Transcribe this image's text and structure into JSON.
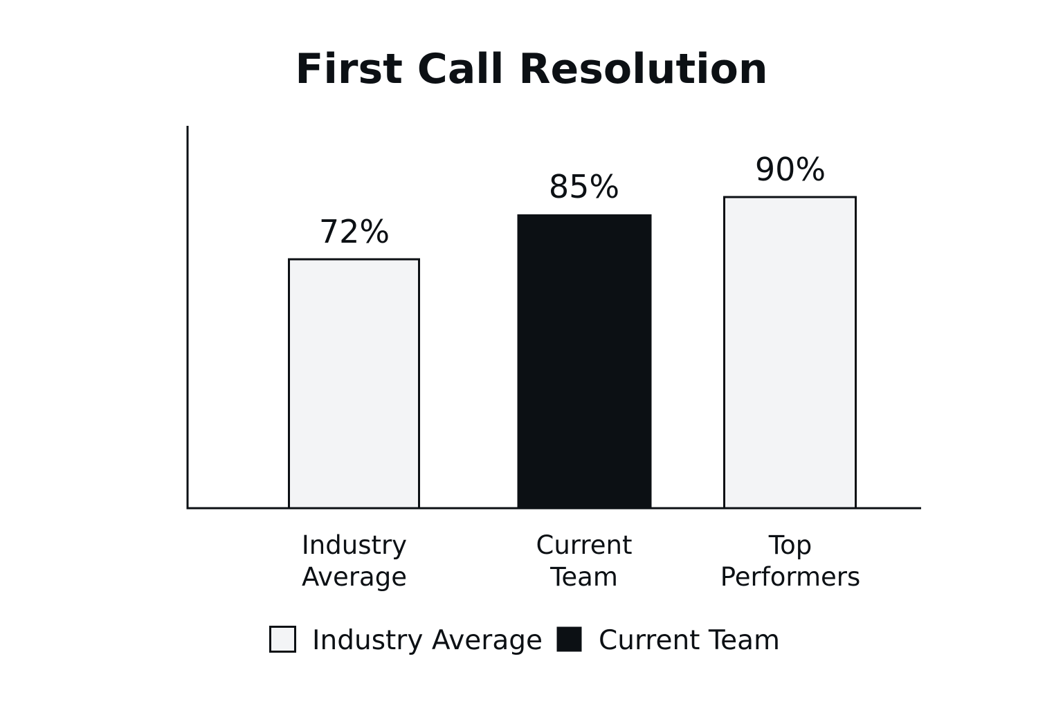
{
  "chart_data": {
    "type": "bar",
    "title": "First Call Resolution",
    "categories": [
      [
        "Industry",
        "Average"
      ],
      [
        "Current",
        "Team"
      ],
      [
        "Top",
        "Performers"
      ]
    ],
    "values": [
      72,
      85,
      90
    ],
    "value_labels": [
      "72%",
      "85%",
      "90%"
    ],
    "bar_colors": [
      "#f3f4f6",
      "#0c1014",
      "#f3f4f6"
    ],
    "ylim": [
      0,
      100
    ],
    "grid": false,
    "legend_position": "bottom-center",
    "legend": [
      {
        "label": "Industry Average",
        "color": "#f3f4f6"
      },
      {
        "label": "Current Team",
        "color": "#0c1014"
      }
    ],
    "xlabel": "",
    "ylabel": ""
  }
}
